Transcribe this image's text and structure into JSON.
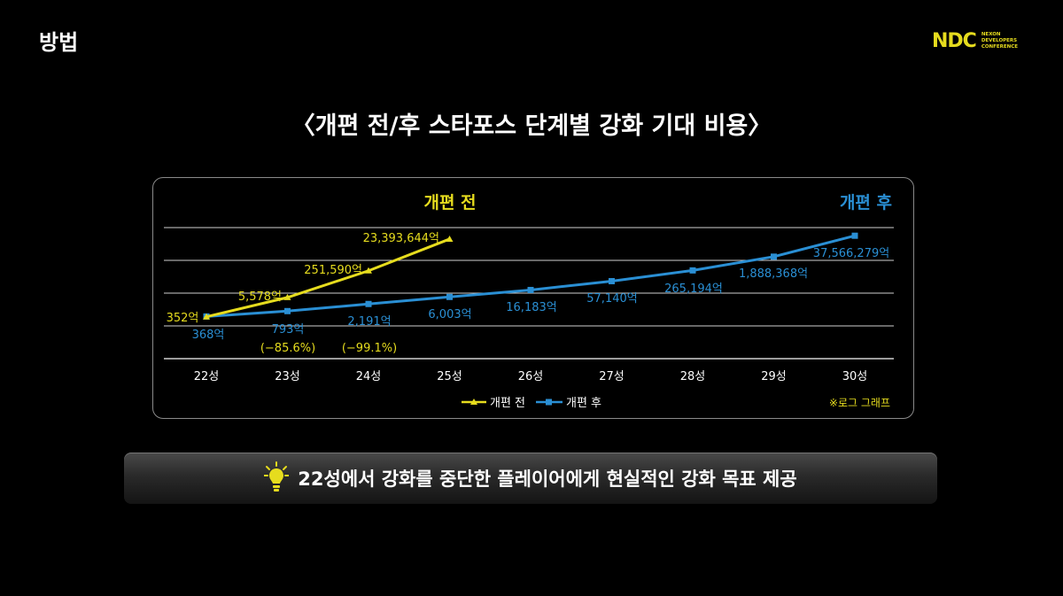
{
  "header": {
    "title": "방법"
  },
  "logo": {
    "mark": "NDC",
    "line1": "NEXON",
    "line2": "DEVELOPERS",
    "line3": "CONFERENCE"
  },
  "slide_title": "〈개편 전/후 스타포스 단계별 강화 기대 비용〉",
  "colors": {
    "before": "#e6dc1e",
    "after": "#2a8fd4",
    "grid": "#d0d0d0"
  },
  "chart_data": {
    "type": "line",
    "title": "",
    "xlabel": "",
    "ylabel": "",
    "y_scale": "log",
    "categories": [
      "22성",
      "23성",
      "24성",
      "25성",
      "26성",
      "27성",
      "28성",
      "29성",
      "30성"
    ],
    "series": [
      {
        "name": "개편 전",
        "values": [
          352,
          5578,
          251590,
          23393644,
          null,
          null,
          null,
          null,
          null
        ],
        "data_labels": [
          "352억",
          "5,578억",
          "251,590억",
          "23,393,644억"
        ]
      },
      {
        "name": "개편 후",
        "values": [
          368,
          793,
          2191,
          6003,
          16183,
          57140,
          265194,
          1888368,
          37566279
        ],
        "data_labels": [
          "368억",
          "793억",
          "2,191억",
          "6,003억",
          "16,183억",
          "57,140억",
          "265,194억",
          "1,888,368억",
          "37,566,279억"
        ]
      }
    ],
    "reductions": [
      {
        "category": "23성",
        "label": "(−85.6%)"
      },
      {
        "category": "24성",
        "label": "(−99.1%)"
      }
    ],
    "annotations": {
      "before_label": "개편 전",
      "after_label": "개편 후",
      "note": "※로그 그래프"
    },
    "legend": {
      "position": "bottom-center",
      "items": [
        "개편 전",
        "개편 후"
      ]
    },
    "grid": true
  },
  "banner": {
    "text": "22성에서 강화를 중단한 플레이어에게 현실적인 강화 목표 제공"
  }
}
